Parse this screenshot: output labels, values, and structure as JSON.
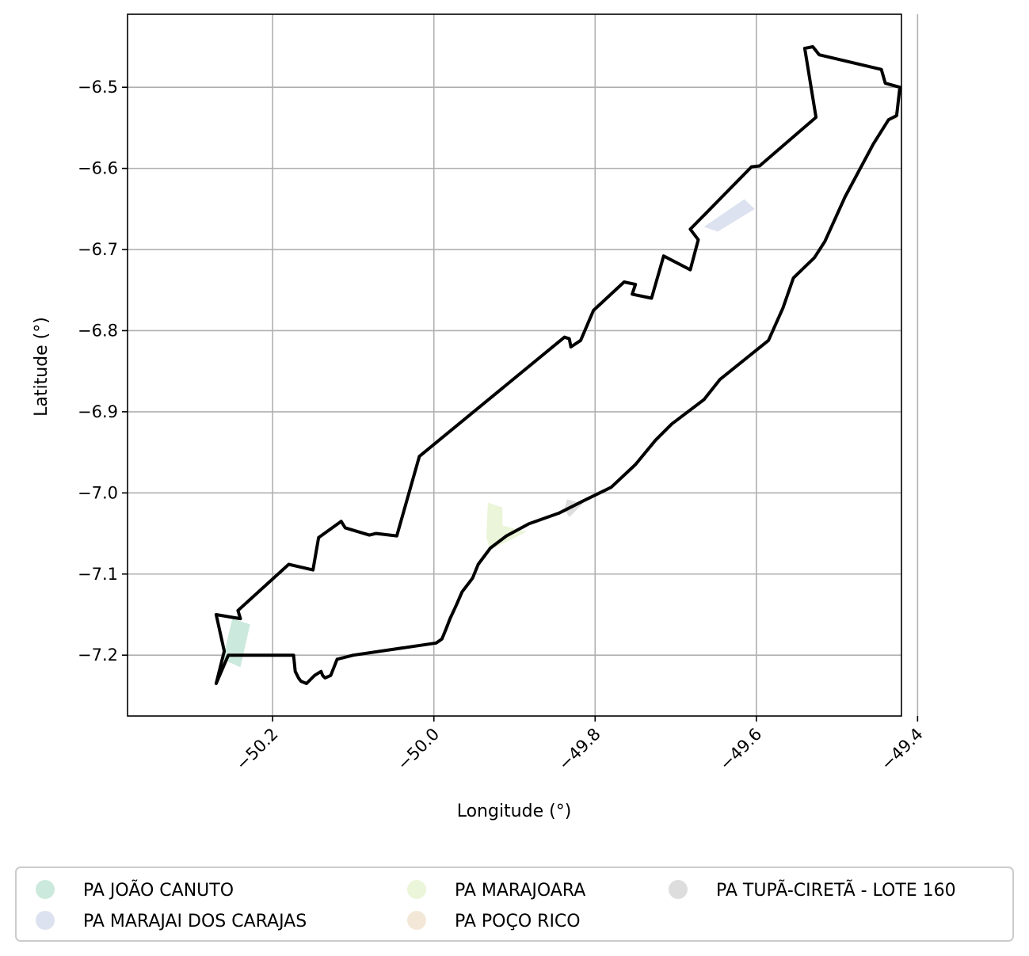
{
  "chart_data": {
    "type": "map",
    "xlabel": "Longitude (°)",
    "ylabel": "Latitude (°)",
    "xlim": [
      -50.38,
      -49.42
    ],
    "ylim": [
      -7.275,
      -6.41
    ],
    "xticks": [
      -50.2,
      -50.0,
      -49.8,
      -49.6,
      -49.4
    ],
    "xtick_labels": [
      "−50.2",
      "−50.0",
      "−49.8",
      "−49.6",
      "−49.4"
    ],
    "yticks": [
      -6.5,
      -6.6,
      -6.7,
      -6.8,
      -6.9,
      -7.0,
      -7.1,
      -7.2
    ],
    "ytick_labels": [
      "−6.5",
      "−6.6",
      "−6.7",
      "−6.8",
      "−6.9",
      "−7.0",
      "−7.1",
      "−7.2"
    ],
    "grid": true,
    "boundary": [
      [
        -50.26,
        -7.195
      ],
      [
        -50.27,
        -7.15
      ],
      [
        -50.24,
        -7.155
      ],
      [
        -50.243,
        -7.145
      ],
      [
        -50.18,
        -7.088
      ],
      [
        -50.15,
        -7.095
      ],
      [
        -50.143,
        -7.055
      ],
      [
        -50.115,
        -7.035
      ],
      [
        -50.11,
        -7.043
      ],
      [
        -50.08,
        -7.052
      ],
      [
        -50.072,
        -7.05
      ],
      [
        -50.046,
        -7.053
      ],
      [
        -50.018,
        -6.955
      ],
      [
        -49.838,
        -6.808
      ],
      [
        -49.832,
        -6.81
      ],
      [
        -49.83,
        -6.82
      ],
      [
        -49.818,
        -6.812
      ],
      [
        -49.802,
        -6.775
      ],
      [
        -49.764,
        -6.74
      ],
      [
        -49.75,
        -6.743
      ],
      [
        -49.754,
        -6.755
      ],
      [
        -49.73,
        -6.76
      ],
      [
        -49.715,
        -6.708
      ],
      [
        -49.682,
        -6.725
      ],
      [
        -49.672,
        -6.688
      ],
      [
        -49.682,
        -6.675
      ],
      [
        -49.606,
        -6.598
      ],
      [
        -49.596,
        -6.597
      ],
      [
        -49.526,
        -6.537
      ],
      [
        -49.54,
        -6.452
      ],
      [
        -49.53,
        -6.45
      ],
      [
        -49.522,
        -6.46
      ],
      [
        -49.445,
        -6.478
      ],
      [
        -49.44,
        -6.495
      ],
      [
        -49.422,
        -6.5
      ],
      [
        -49.426,
        -6.535
      ],
      [
        -49.436,
        -6.54
      ],
      [
        -49.455,
        -6.57
      ],
      [
        -49.49,
        -6.635
      ],
      [
        -49.515,
        -6.69
      ],
      [
        -49.528,
        -6.71
      ],
      [
        -49.554,
        -6.735
      ],
      [
        -49.567,
        -6.772
      ],
      [
        -49.585,
        -6.812
      ],
      [
        -49.645,
        -6.86
      ],
      [
        -49.665,
        -6.885
      ],
      [
        -49.705,
        -6.915
      ],
      [
        -49.725,
        -6.935
      ],
      [
        -49.75,
        -6.965
      ],
      [
        -49.78,
        -6.993
      ],
      [
        -49.815,
        -7.01
      ],
      [
        -49.845,
        -7.025
      ],
      [
        -49.882,
        -7.038
      ],
      [
        -49.91,
        -7.053
      ],
      [
        -49.93,
        -7.068
      ],
      [
        -49.945,
        -7.088
      ],
      [
        -49.952,
        -7.105
      ],
      [
        -49.965,
        -7.122
      ],
      [
        -49.972,
        -7.138
      ],
      [
        -49.98,
        -7.155
      ],
      [
        -49.985,
        -7.168
      ],
      [
        -49.99,
        -7.18
      ],
      [
        -49.997,
        -7.185
      ],
      [
        -50.1,
        -7.2
      ],
      [
        -50.12,
        -7.205
      ],
      [
        -50.128,
        -7.225
      ],
      [
        -50.135,
        -7.228
      ],
      [
        -50.138,
        -7.225
      ],
      [
        -50.14,
        -7.22
      ],
      [
        -50.148,
        -7.225
      ],
      [
        -50.158,
        -7.235
      ],
      [
        -50.165,
        -7.232
      ],
      [
        -50.168,
        -7.228
      ],
      [
        -50.172,
        -7.22
      ],
      [
        -50.174,
        -7.2
      ],
      [
        -50.255,
        -7.2
      ],
      [
        -50.27,
        -7.235
      ],
      [
        -50.26,
        -7.195
      ]
    ],
    "areas": [
      {
        "name": "PA JOÃO CANUTO",
        "color": "#cbe9dc",
        "polygon": [
          [
            -50.25,
            -7.155
          ],
          [
            -50.228,
            -7.162
          ],
          [
            -50.24,
            -7.215
          ],
          [
            -50.262,
            -7.205
          ]
        ]
      },
      {
        "name": "PA MARAJAI DOS CARAJAS",
        "color": "#dde2f0",
        "polygon": [
          [
            -49.665,
            -6.672
          ],
          [
            -49.648,
            -6.678
          ],
          [
            -49.602,
            -6.65
          ],
          [
            -49.615,
            -6.638
          ]
        ]
      },
      {
        "name": "PA MARAJOARA",
        "color": "#ebf5d9",
        "polygon": [
          [
            -49.933,
            -7.012
          ],
          [
            -49.915,
            -7.018
          ],
          [
            -49.915,
            -7.04
          ],
          [
            -49.885,
            -7.048
          ],
          [
            -49.93,
            -7.07
          ],
          [
            -49.935,
            -7.055
          ]
        ]
      },
      {
        "name": "PA POÇO RICO",
        "color": "#f3e8d8",
        "polygon": [
          [
            -49.43,
            -6.53
          ],
          [
            -49.425,
            -6.53
          ],
          [
            -49.425,
            -6.54
          ],
          [
            -49.43,
            -6.54
          ]
        ]
      },
      {
        "name": "PA TUPÃ-CIRETÃ - LOTE 160",
        "color": "#dddddd",
        "polygon": [
          [
            -49.835,
            -7.008
          ],
          [
            -49.815,
            -7.013
          ],
          [
            -49.832,
            -7.03
          ],
          [
            -49.838,
            -7.02
          ]
        ]
      }
    ]
  },
  "legend": {
    "items": [
      {
        "label": "PA JOÃO CANUTO",
        "color": "#cbe9dc"
      },
      {
        "label": "PA MARAJAI DOS CARAJAS",
        "color": "#dde2f0"
      },
      {
        "label": "PA MARAJOARA",
        "color": "#ebf5d9"
      },
      {
        "label": "PA POÇO RICO",
        "color": "#f3e8d8"
      },
      {
        "label": "PA TUPÃ-CIRETÃ - LOTE 160",
        "color": "#dddddd"
      }
    ]
  }
}
